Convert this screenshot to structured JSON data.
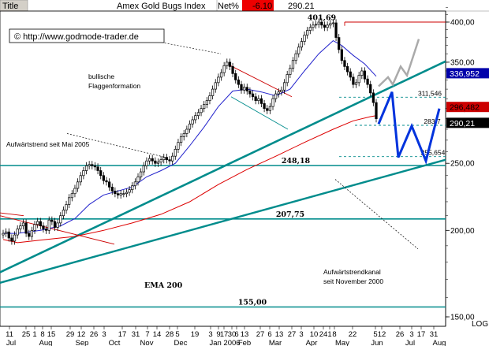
{
  "header": {
    "title_label": "Title",
    "instrument": "Amex Gold Bugs Index",
    "change_label": "Net%",
    "change_value": "-6.10",
    "last_price": "290.21"
  },
  "watermark": "© http://www.godmode-trader.de",
  "colors": {
    "price": "#000000",
    "ema_short": "#2222cc",
    "ema_200": "#dd0000",
    "trend": "#008c8c",
    "projection_blue": "#0033dd",
    "projection_gray": "#aaaaaa",
    "badge_blue": "#0000aa",
    "badge_red": "#cc0000",
    "badge_black": "#000000"
  },
  "chart_data": {
    "type": "candlestick",
    "title": "Amex Gold Bugs Index",
    "y_scale": "log",
    "ylim": [
      139,
      424
    ],
    "y_ticks": [
      {
        "label": "400,00",
        "value": 400
      },
      {
        "label": "350,00",
        "value": 350
      },
      {
        "label": "300,00",
        "value": 300
      },
      {
        "label": "250,00",
        "value": 250
      },
      {
        "label": "200,00",
        "value": 200
      },
      {
        "label": "150,00",
        "value": 150
      }
    ],
    "x_tick_rows": {
      "days": [
        "11",
        "25",
        "1",
        "8",
        "15",
        "29",
        "12",
        "26",
        "3",
        "17",
        "31",
        "7",
        "14",
        "28",
        "5",
        "19",
        "3",
        "9",
        "17",
        "30",
        "6",
        "13",
        "27",
        "6",
        "13",
        "27",
        "3",
        "10",
        "24",
        "1",
        "8",
        "22",
        "5",
        "12",
        "26",
        "3",
        "17",
        "31"
      ],
      "months": [
        "Jul",
        "Aug",
        "Sep",
        "Oct",
        "Nov",
        "Dec",
        "Jan 2006",
        "Feb",
        "Mar",
        "Apr",
        "May",
        "Jun",
        "Jul",
        "Aug"
      ]
    },
    "log_label": "LOG",
    "series": [
      {
        "name": "",
        "type": "candlestick",
        "close": [
          198,
          199,
          195,
          193,
          197,
          201,
          203,
          205,
          198,
          196,
          200,
          204,
          206,
          203,
          201,
          200,
          207,
          206,
          202,
          205,
          210,
          214,
          218,
          223,
          226,
          230,
          235,
          240,
          244,
          248,
          249,
          248,
          247,
          244,
          240,
          236,
          235,
          231,
          228,
          226,
          225,
          226,
          226,
          227,
          229,
          232,
          235,
          239,
          243,
          248,
          252,
          254,
          252,
          250,
          251,
          253,
          255,
          253,
          252,
          256,
          262,
          268,
          273,
          276,
          280,
          285,
          289,
          293,
          296,
          300,
          304,
          308,
          313,
          320,
          327,
          333,
          338,
          346,
          350,
          345,
          337,
          330,
          325,
          319,
          322,
          318,
          315,
          312,
          308,
          310,
          305,
          300,
          298,
          302,
          310,
          315,
          317,
          319,
          327,
          336,
          343,
          352,
          360,
          368,
          375,
          383,
          389,
          393,
          396,
          397,
          400,
          396,
          393,
          396,
          398,
          399,
          380,
          365,
          352,
          345,
          339,
          333,
          325,
          327,
          335,
          340,
          331,
          325,
          316,
          306,
          290
        ]
      },
      {
        "name": "",
        "type": "ema_short",
        "values": [
          [
            0,
            198
          ],
          [
            5,
            198
          ],
          [
            13,
            200
          ],
          [
            20,
            203
          ],
          [
            25,
            208
          ],
          [
            30,
            218
          ],
          [
            35,
            225
          ],
          [
            40,
            228
          ],
          [
            45,
            231
          ],
          [
            50,
            239
          ],
          [
            55,
            244
          ],
          [
            60,
            250
          ],
          [
            65,
            265
          ],
          [
            70,
            282
          ],
          [
            75,
            302
          ],
          [
            80,
            318
          ],
          [
            85,
            320
          ],
          [
            90,
            317
          ],
          [
            95,
            313
          ],
          [
            100,
            320
          ],
          [
            105,
            340
          ],
          [
            110,
            360
          ],
          [
            115,
            376
          ],
          [
            118,
            370
          ],
          [
            122,
            358
          ],
          [
            126,
            348
          ],
          [
            130,
            334
          ]
        ]
      },
      {
        "name": "EMA 200",
        "type": "ema_200",
        "values": [
          [
            0,
            194
          ],
          [
            5,
            192
          ],
          [
            15,
            194
          ],
          [
            25,
            196
          ],
          [
            35,
            200
          ],
          [
            45,
            205
          ],
          [
            55,
            211
          ],
          [
            65,
            220
          ],
          [
            75,
            233
          ],
          [
            85,
            245
          ],
          [
            95,
            256
          ],
          [
            105,
            268
          ],
          [
            115,
            280
          ],
          [
            122,
            288
          ],
          [
            128,
            292
          ],
          [
            130,
            293
          ]
        ]
      }
    ],
    "horizontal_levels": [
      {
        "label": "248,18",
        "value": 248.18
      },
      {
        "label": "207,75",
        "value": 207.75
      },
      {
        "label": "155,00",
        "value": 155.0
      }
    ],
    "fib_levels": [
      {
        "label": "311,546",
        "value": 311.546
      },
      {
        "label": "283,7",
        "value": 283.7
      },
      {
        "label": "255,654",
        "value": 255.654
      }
    ],
    "price_badges": [
      {
        "label": "336,952",
        "value": 336.952,
        "color": "#0000aa"
      },
      {
        "label": "296,482",
        "value": 296.482,
        "color": "#cc0000"
      },
      {
        "label": "290,21",
        "value": 290.21,
        "color": "#000000"
      }
    ],
    "peak_label": {
      "label": "401,69",
      "value": 401.69
    },
    "annotations": [
      {
        "lines": [
          "bullische",
          "Flaggenformation"
        ]
      },
      {
        "lines": [
          "Aufwärtstrend seit Mai 2005"
        ]
      },
      {
        "lines": [
          "Aufwärtstrendkanal",
          "seit November 2000"
        ]
      },
      {
        "lines": [
          "EMA 200"
        ]
      }
    ],
    "grid": false
  }
}
